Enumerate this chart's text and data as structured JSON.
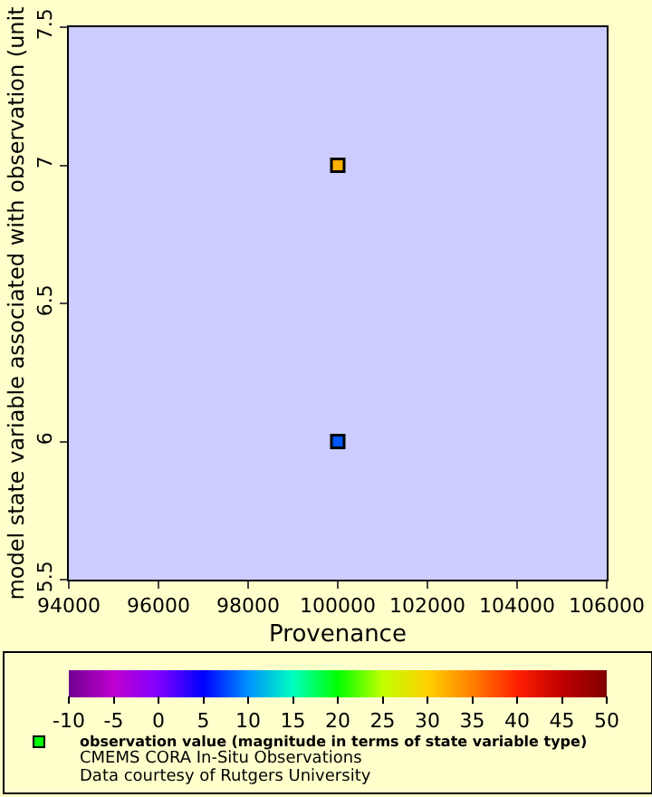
{
  "chart_data": {
    "type": "scatter",
    "xlabel": "Provenance",
    "ylabel": "model state variable associated with observation (unit",
    "clabel": "observation value (magnitude in terms of state variable type)",
    "series": [
      {
        "x": [
          100000,
          100000
        ],
        "values": [
          7,
          6
        ],
        "cvalues": [
          32,
          8
        ]
      }
    ],
    "xlim": [
      94000,
      106000
    ],
    "xticks": [
      94000,
      96000,
      98000,
      100000,
      102000,
      104000,
      106000
    ],
    "ylim": [
      5.5,
      7.5
    ],
    "yticks": [
      5.5,
      6,
      6.5,
      7,
      7.5
    ],
    "clim": [
      -10,
      50
    ],
    "cticks": [
      -10,
      -5,
      0,
      5,
      10,
      15,
      20,
      25,
      30,
      35,
      40,
      45,
      50
    ],
    "marker": "square",
    "grid": false,
    "annotations": [
      "CMEMS CORA In-Situ Observations",
      "Data courtesy of Rutgers University"
    ]
  }
}
